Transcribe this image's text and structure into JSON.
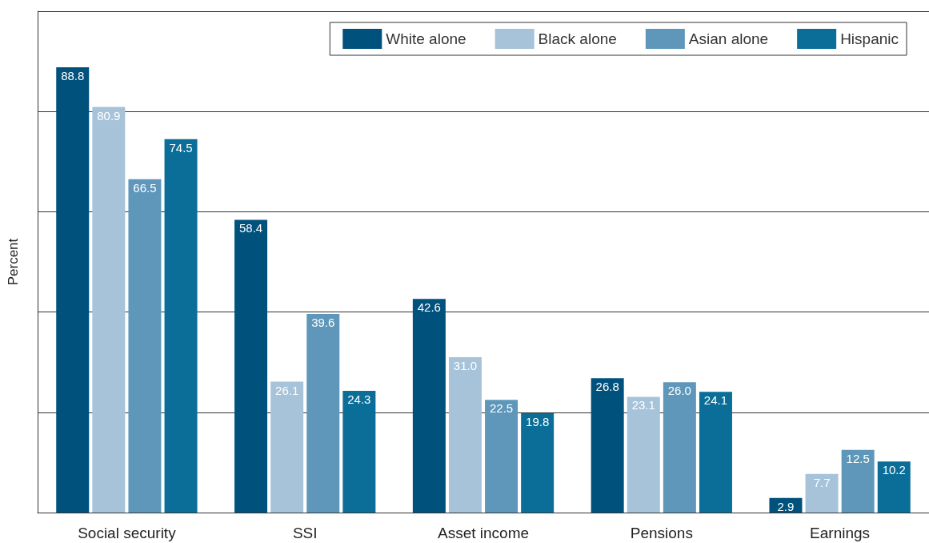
{
  "chart_data": {
    "type": "bar",
    "ylabel": "Percent",
    "categories": [
      "Social security",
      "SSI",
      "Asset income",
      "Pensions",
      "Earnings"
    ],
    "series": [
      {
        "name": "White alone",
        "color": "#01517d",
        "values": [
          88.8,
          58.4,
          42.6,
          26.8,
          2.9
        ],
        "value_labels": [
          "88.8",
          "58.4",
          "42.6",
          "26.8",
          "2.9"
        ]
      },
      {
        "name": "Black alone",
        "color": "#a7c3da",
        "values": [
          80.9,
          26.1,
          31.0,
          23.1,
          7.7
        ],
        "value_labels": [
          "80.9",
          "26.1",
          "31.0",
          "23.1",
          "7.7"
        ]
      },
      {
        "name": "Asian alone",
        "color": "#5f97ba",
        "values": [
          66.5,
          39.6,
          22.5,
          26.0,
          12.5
        ],
        "value_labels": [
          "66.5",
          "39.6",
          "22.5",
          "26.0",
          "12.5"
        ]
      },
      {
        "name": "Hispanic",
        "color": "#0a6e98",
        "values": [
          74.5,
          24.3,
          19.8,
          24.1,
          10.2
        ],
        "value_labels": [
          "74.5",
          "24.3",
          "19.8",
          "24.1",
          "10.2"
        ]
      }
    ],
    "ylim": [
      0,
      100
    ],
    "yticks": [
      {
        "value": 0,
        "label": null
      },
      {
        "value": 20,
        "label": null
      },
      {
        "value": 40,
        "label": null
      },
      {
        "value": 60,
        "label": null
      },
      {
        "value": 80,
        "label": null
      },
      {
        "value": 100,
        "label": null
      }
    ],
    "tick_labels": "x",
    "grid": "y",
    "legend": "top right"
  }
}
